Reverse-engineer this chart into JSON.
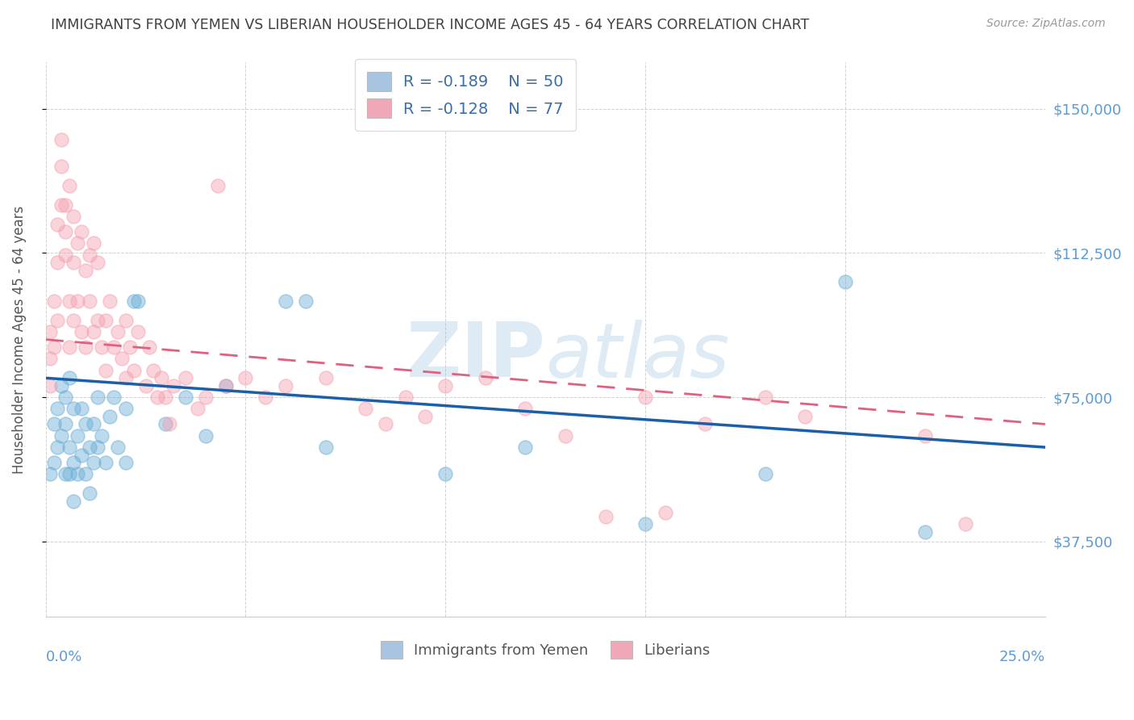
{
  "title": "IMMIGRANTS FROM YEMEN VS LIBERIAN HOUSEHOLDER INCOME AGES 45 - 64 YEARS CORRELATION CHART",
  "source": "Source: ZipAtlas.com",
  "ylabel": "Householder Income Ages 45 - 64 years",
  "ytick_labels": [
    "$37,500",
    "$75,000",
    "$112,500",
    "$150,000"
  ],
  "ytick_values": [
    37500,
    75000,
    112500,
    150000
  ],
  "ylim": [
    18000,
    162000
  ],
  "xlim": [
    0.0,
    0.25
  ],
  "legend_1": {
    "R": "-0.189",
    "N": "50",
    "color": "#a8c4e0"
  },
  "legend_2": {
    "R": "-0.128",
    "N": "77",
    "color": "#f0a8b8"
  },
  "blue_color": "#6baed6",
  "pink_color": "#f4a0b0",
  "line_blue": "#1a5fa8",
  "line_pink": "#e06080",
  "title_color": "#404040",
  "axis_label_color": "#5b9bd5",
  "grid_color": "#cccccc",
  "yemen_points": [
    [
      0.001,
      55000
    ],
    [
      0.002,
      58000
    ],
    [
      0.002,
      68000
    ],
    [
      0.003,
      72000
    ],
    [
      0.003,
      62000
    ],
    [
      0.004,
      78000
    ],
    [
      0.004,
      65000
    ],
    [
      0.005,
      75000
    ],
    [
      0.005,
      55000
    ],
    [
      0.005,
      68000
    ],
    [
      0.006,
      80000
    ],
    [
      0.006,
      62000
    ],
    [
      0.006,
      55000
    ],
    [
      0.007,
      72000
    ],
    [
      0.007,
      58000
    ],
    [
      0.007,
      48000
    ],
    [
      0.008,
      65000
    ],
    [
      0.008,
      55000
    ],
    [
      0.009,
      72000
    ],
    [
      0.009,
      60000
    ],
    [
      0.01,
      68000
    ],
    [
      0.01,
      55000
    ],
    [
      0.011,
      62000
    ],
    [
      0.011,
      50000
    ],
    [
      0.012,
      68000
    ],
    [
      0.012,
      58000
    ],
    [
      0.013,
      75000
    ],
    [
      0.013,
      62000
    ],
    [
      0.014,
      65000
    ],
    [
      0.015,
      58000
    ],
    [
      0.016,
      70000
    ],
    [
      0.017,
      75000
    ],
    [
      0.018,
      62000
    ],
    [
      0.02,
      72000
    ],
    [
      0.02,
      58000
    ],
    [
      0.022,
      100000
    ],
    [
      0.023,
      100000
    ],
    [
      0.03,
      68000
    ],
    [
      0.035,
      75000
    ],
    [
      0.04,
      65000
    ],
    [
      0.045,
      78000
    ],
    [
      0.06,
      100000
    ],
    [
      0.065,
      100000
    ],
    [
      0.07,
      62000
    ],
    [
      0.1,
      55000
    ],
    [
      0.12,
      62000
    ],
    [
      0.15,
      42000
    ],
    [
      0.18,
      55000
    ],
    [
      0.2,
      105000
    ],
    [
      0.22,
      40000
    ]
  ],
  "liberian_points": [
    [
      0.001,
      85000
    ],
    [
      0.001,
      78000
    ],
    [
      0.001,
      92000
    ],
    [
      0.002,
      88000
    ],
    [
      0.002,
      100000
    ],
    [
      0.003,
      110000
    ],
    [
      0.003,
      95000
    ],
    [
      0.003,
      120000
    ],
    [
      0.004,
      125000
    ],
    [
      0.004,
      135000
    ],
    [
      0.004,
      142000
    ],
    [
      0.005,
      112000
    ],
    [
      0.005,
      125000
    ],
    [
      0.005,
      118000
    ],
    [
      0.006,
      130000
    ],
    [
      0.006,
      100000
    ],
    [
      0.006,
      88000
    ],
    [
      0.007,
      122000
    ],
    [
      0.007,
      110000
    ],
    [
      0.007,
      95000
    ],
    [
      0.008,
      115000
    ],
    [
      0.008,
      100000
    ],
    [
      0.009,
      118000
    ],
    [
      0.009,
      92000
    ],
    [
      0.01,
      108000
    ],
    [
      0.01,
      88000
    ],
    [
      0.011,
      112000
    ],
    [
      0.011,
      100000
    ],
    [
      0.012,
      115000
    ],
    [
      0.012,
      92000
    ],
    [
      0.013,
      110000
    ],
    [
      0.013,
      95000
    ],
    [
      0.014,
      88000
    ],
    [
      0.015,
      95000
    ],
    [
      0.015,
      82000
    ],
    [
      0.016,
      100000
    ],
    [
      0.017,
      88000
    ],
    [
      0.018,
      92000
    ],
    [
      0.019,
      85000
    ],
    [
      0.02,
      95000
    ],
    [
      0.02,
      80000
    ],
    [
      0.021,
      88000
    ],
    [
      0.022,
      82000
    ],
    [
      0.023,
      92000
    ],
    [
      0.025,
      78000
    ],
    [
      0.026,
      88000
    ],
    [
      0.027,
      82000
    ],
    [
      0.028,
      75000
    ],
    [
      0.029,
      80000
    ],
    [
      0.03,
      75000
    ],
    [
      0.031,
      68000
    ],
    [
      0.032,
      78000
    ],
    [
      0.035,
      80000
    ],
    [
      0.038,
      72000
    ],
    [
      0.04,
      75000
    ],
    [
      0.043,
      130000
    ],
    [
      0.045,
      78000
    ],
    [
      0.05,
      80000
    ],
    [
      0.055,
      75000
    ],
    [
      0.06,
      78000
    ],
    [
      0.07,
      80000
    ],
    [
      0.08,
      72000
    ],
    [
      0.085,
      68000
    ],
    [
      0.09,
      75000
    ],
    [
      0.095,
      70000
    ],
    [
      0.1,
      78000
    ],
    [
      0.11,
      80000
    ],
    [
      0.12,
      72000
    ],
    [
      0.13,
      65000
    ],
    [
      0.14,
      44000
    ],
    [
      0.15,
      75000
    ],
    [
      0.155,
      45000
    ],
    [
      0.165,
      68000
    ],
    [
      0.18,
      75000
    ],
    [
      0.19,
      70000
    ],
    [
      0.22,
      65000
    ],
    [
      0.23,
      42000
    ]
  ]
}
